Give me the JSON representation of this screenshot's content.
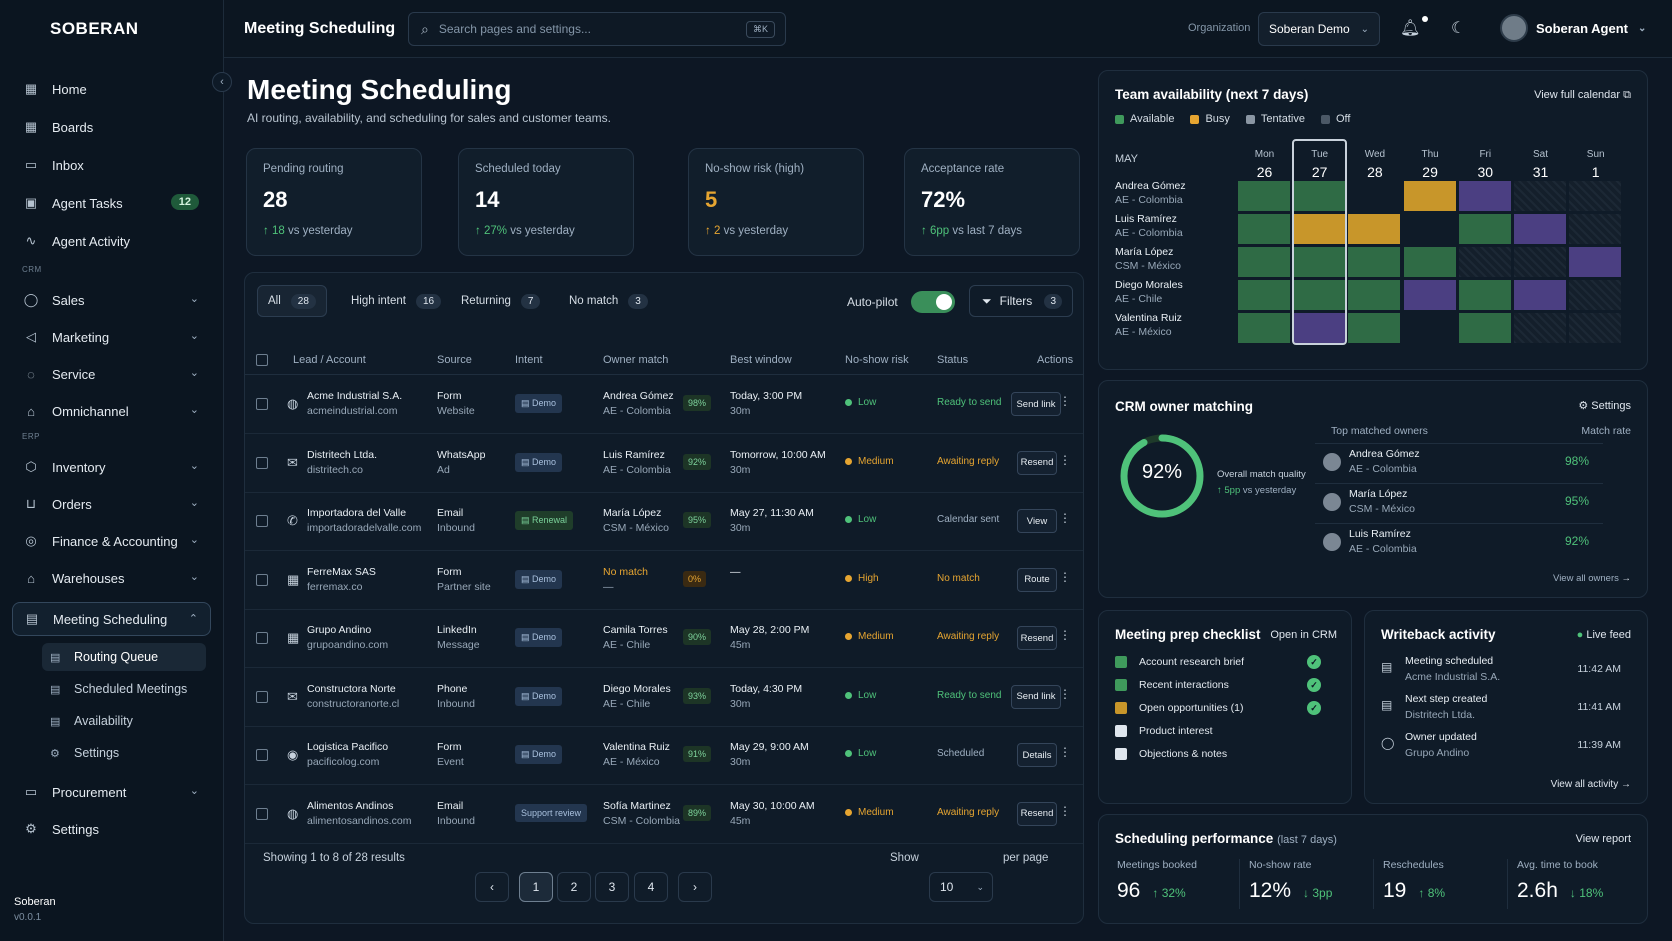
{
  "brand": "SOBERAN",
  "footer": {
    "name": "Soberan",
    "version": "v0.0.1"
  },
  "sidebar": {
    "items": [
      {
        "label": "Home"
      },
      {
        "label": "Boards"
      },
      {
        "label": "Inbox"
      },
      {
        "label": "Agent Tasks",
        "badge": "12"
      },
      {
        "label": "Agent Activity"
      }
    ],
    "crm_label": "CRM",
    "crm": [
      {
        "label": "Sales"
      },
      {
        "label": "Marketing"
      },
      {
        "label": "Service"
      },
      {
        "label": "Omnichannel"
      }
    ],
    "erp_label": "ERP",
    "erp": [
      {
        "label": "Inventory"
      },
      {
        "label": "Orders"
      },
      {
        "label": "Finance & Accounting"
      },
      {
        "label": "Warehouses"
      },
      {
        "label": "Meeting Scheduling"
      }
    ],
    "sub": [
      {
        "label": "Routing Queue"
      },
      {
        "label": "Scheduled Meetings"
      },
      {
        "label": "Availability"
      },
      {
        "label": "Settings"
      }
    ],
    "bottom": [
      {
        "label": "Procurement"
      },
      {
        "label": "Settings"
      }
    ]
  },
  "topbar": {
    "title": "Meeting Scheduling",
    "search_placeholder": "Search pages and settings...",
    "kbd": "⌘K",
    "org_label": "Organization",
    "org_value": "Soberan Demo",
    "user": "Soberan Agent"
  },
  "page": {
    "title": "Meeting Scheduling",
    "subtitle": "AI routing, availability, and scheduling for sales and customer teams."
  },
  "kpis": [
    {
      "label": "Pending routing",
      "value": "28",
      "delta": "18",
      "suffix": "vs yesterday",
      "color": "#ffffff"
    },
    {
      "label": "Scheduled today",
      "value": "14",
      "delta": "27%",
      "suffix": "vs yesterday",
      "color": "#ffffff"
    },
    {
      "label": "No-show risk (high)",
      "value": "5",
      "delta": "2",
      "suffix": "vs yesterday",
      "color": "#e6a531"
    },
    {
      "label": "Acceptance rate",
      "value": "72%",
      "delta": "6pp",
      "suffix": "vs last 7 days",
      "color": "#ffffff"
    }
  ],
  "tabs": [
    {
      "label": "All",
      "count": "28"
    },
    {
      "label": "High intent",
      "count": "16"
    },
    {
      "label": "Returning",
      "count": "7"
    },
    {
      "label": "No match",
      "count": "3"
    }
  ],
  "autopilot": "Auto-pilot",
  "filters": {
    "label": "Filters",
    "count": "3"
  },
  "columns": [
    "Lead / Account",
    "Source",
    "Intent",
    "Owner match",
    "Best window",
    "No-show risk",
    "Status",
    "Actions"
  ],
  "rows": [
    {
      "icon": "globe",
      "name": "Acme Industrial S.A.",
      "domain": "acmeindustrial.com",
      "src1": "Form",
      "src2": "Website",
      "intent": "Demo",
      "intent_type": "demo",
      "owner": "Andrea Gómez",
      "owner2": "AE - Colombia",
      "pct": "98%",
      "win1": "Today, 3:00 PM",
      "win2": "30m",
      "risk": "Low",
      "status": "Ready to send",
      "action": "Send link"
    },
    {
      "icon": "mail",
      "name": "Distritech Ltda.",
      "domain": "distritech.co",
      "src1": "WhatsApp",
      "src2": "Ad",
      "intent": "Demo",
      "intent_type": "demo",
      "owner": "Luis Ramírez",
      "owner2": "AE - Colombia",
      "pct": "92%",
      "win1": "Tomorrow, 10:00 AM",
      "win2": "30m",
      "risk": "Medium",
      "status": "Awaiting reply",
      "action": "Resend"
    },
    {
      "icon": "phone",
      "name": "Importadora del Valle",
      "domain": "importadoradelvalle.com",
      "src1": "Email",
      "src2": "Inbound",
      "intent": "Renewal",
      "intent_type": "renewal",
      "owner": "María López",
      "owner2": "CSM - México",
      "pct": "95%",
      "win1": "May 27, 11:30 AM",
      "win2": "30m",
      "risk": "Low",
      "status": "Calendar sent",
      "action": "View"
    },
    {
      "icon": "building",
      "name": "FerreMax SAS",
      "domain": "ferremax.co",
      "src1": "Form",
      "src2": "Partner site",
      "intent": "Demo",
      "intent_type": "demo",
      "owner": "No match",
      "owner2": "—",
      "pct": "0%",
      "win1": "—",
      "win2": "",
      "risk": "High",
      "status": "No match",
      "action": "Route"
    },
    {
      "icon": "linkedin",
      "name": "Grupo Andino",
      "domain": "grupoandino.com",
      "src1": "LinkedIn",
      "src2": "Message",
      "intent": "Demo",
      "intent_type": "demo",
      "owner": "Camila Torres",
      "owner2": "AE - Chile",
      "pct": "90%",
      "win1": "May 28, 2:00 PM",
      "win2": "45m",
      "risk": "Medium",
      "status": "Awaiting reply",
      "action": "Resend"
    },
    {
      "icon": "mail",
      "name": "Constructora Norte",
      "domain": "constructoranorte.cl",
      "src1": "Phone",
      "src2": "Inbound",
      "intent": "Demo",
      "intent_type": "demo",
      "owner": "Diego Morales",
      "owner2": "AE - Chile",
      "pct": "93%",
      "win1": "Today, 4:30 PM",
      "win2": "30m",
      "risk": "Low",
      "status": "Ready to send",
      "action": "Send link"
    },
    {
      "icon": "pin",
      "name": "Logistica Pacifico",
      "domain": "pacificolog.com",
      "src1": "Form",
      "src2": "Event",
      "intent": "Demo",
      "intent_type": "demo",
      "owner": "Valentina Ruiz",
      "owner2": "AE - México",
      "pct": "91%",
      "win1": "May 29, 9:00 AM",
      "win2": "30m",
      "risk": "Low",
      "status": "Scheduled",
      "action": "Details"
    },
    {
      "icon": "globe",
      "name": "Alimentos Andinos",
      "domain": "alimentosandinos.com",
      "src1": "Email",
      "src2": "Inbound",
      "intent": "Support review",
      "intent_type": "support",
      "owner": "Sofía Martinez",
      "owner2": "CSM - Colombia",
      "pct": "89%",
      "win1": "May 30, 10:00 AM",
      "win2": "45m",
      "risk": "Medium",
      "status": "Awaiting reply",
      "action": "Resend"
    }
  ],
  "pagination": {
    "summary": "Showing 1 to 8 of 28 results",
    "pages": [
      "1",
      "2",
      "3",
      "4"
    ],
    "show": "Show",
    "per_page_value": "10",
    "per_page": "per page"
  },
  "availability": {
    "title": "Team availability (next 7 days)",
    "link": "View full calendar",
    "legend": [
      "Available",
      "Busy",
      "Tentative",
      "Off"
    ],
    "month": "MAY",
    "days": [
      {
        "n": "Mon",
        "d": "26"
      },
      {
        "n": "Tue",
        "d": "27"
      },
      {
        "n": "Wed",
        "d": "28"
      },
      {
        "n": "Thu",
        "d": "29"
      },
      {
        "n": "Fri",
        "d": "30"
      },
      {
        "n": "Sat",
        "d": "31"
      },
      {
        "n": "Sun",
        "d": "1"
      }
    ],
    "people": [
      {
        "name": "Andrea Gómez",
        "role": "AE - Colombia",
        "cells": [
          "a",
          "a",
          "o",
          "b",
          "t",
          "x",
          "x"
        ]
      },
      {
        "name": "Luis Ramírez",
        "role": "AE - Colombia",
        "cells": [
          "a",
          "b",
          "b",
          "o",
          "a",
          "t",
          "x"
        ]
      },
      {
        "name": "María López",
        "role": "CSM - México",
        "cells": [
          "a",
          "a",
          "a",
          "a",
          "x",
          "x",
          "t"
        ]
      },
      {
        "name": "Diego Morales",
        "role": "AE - Chile",
        "cells": [
          "a",
          "a",
          "a",
          "t",
          "a",
          "t",
          "x"
        ]
      },
      {
        "name": "Valentina Ruiz",
        "role": "AE - México",
        "cells": [
          "a",
          "t",
          "a",
          "o",
          "a",
          "x",
          "x"
        ]
      }
    ],
    "colors": {
      "a": "#2f6b45",
      "b": "#c8962a",
      "t": "#4b3f82",
      "o": "#0f1b28",
      "x": "#17232f"
    }
  },
  "crm": {
    "title": "CRM owner matching",
    "settings": "Settings",
    "quality": "92%",
    "quality_fraction": 0.92,
    "quality_label": "Overall match quality",
    "quality_delta": "5pp",
    "quality_suffix": "vs yesterday",
    "owners_label": "Top matched owners",
    "rate_label": "Match rate",
    "owners": [
      {
        "name": "Andrea Gómez",
        "role": "AE - Colombia",
        "pct": "98%"
      },
      {
        "name": "María López",
        "role": "CSM - México",
        "pct": "95%"
      },
      {
        "name": "Luis Ramírez",
        "role": "AE - Colombia",
        "pct": "92%"
      }
    ],
    "view_all": "View all owners"
  },
  "prep": {
    "title": "Meeting prep checklist",
    "link": "Open in CRM",
    "items": [
      {
        "label": "Account research brief",
        "done": true
      },
      {
        "label": "Recent interactions",
        "done": true
      },
      {
        "label": "Open opportunities (1)",
        "done": true
      },
      {
        "label": "Product interest",
        "done": false
      },
      {
        "label": "Objections & notes",
        "done": false
      }
    ]
  },
  "writeback": {
    "title": "Writeback activity",
    "live": "Live feed",
    "items": [
      {
        "t1": "Meeting scheduled",
        "t2": "Acme Industrial S.A.",
        "time": "11:42 AM"
      },
      {
        "t1": "Next step created",
        "t2": "Distritech Ltda.",
        "time": "11:41 AM"
      },
      {
        "t1": "Owner updated",
        "t2": "Grupo Andino",
        "time": "11:39 AM"
      }
    ],
    "view_all": "View all activity"
  },
  "performance": {
    "title": "Scheduling performance",
    "period": "(last 7 days)",
    "link": "View report",
    "metrics": [
      {
        "label": "Meetings booked",
        "value": "96",
        "delta": "32%",
        "dir": "up"
      },
      {
        "label": "No-show rate",
        "value": "12%",
        "delta": "3pp",
        "dir": "down"
      },
      {
        "label": "Reschedules",
        "value": "19",
        "delta": "8%",
        "dir": "up"
      },
      {
        "label": "Avg. time to book",
        "value": "2.6h",
        "delta": "18%",
        "dir": "down"
      }
    ]
  }
}
